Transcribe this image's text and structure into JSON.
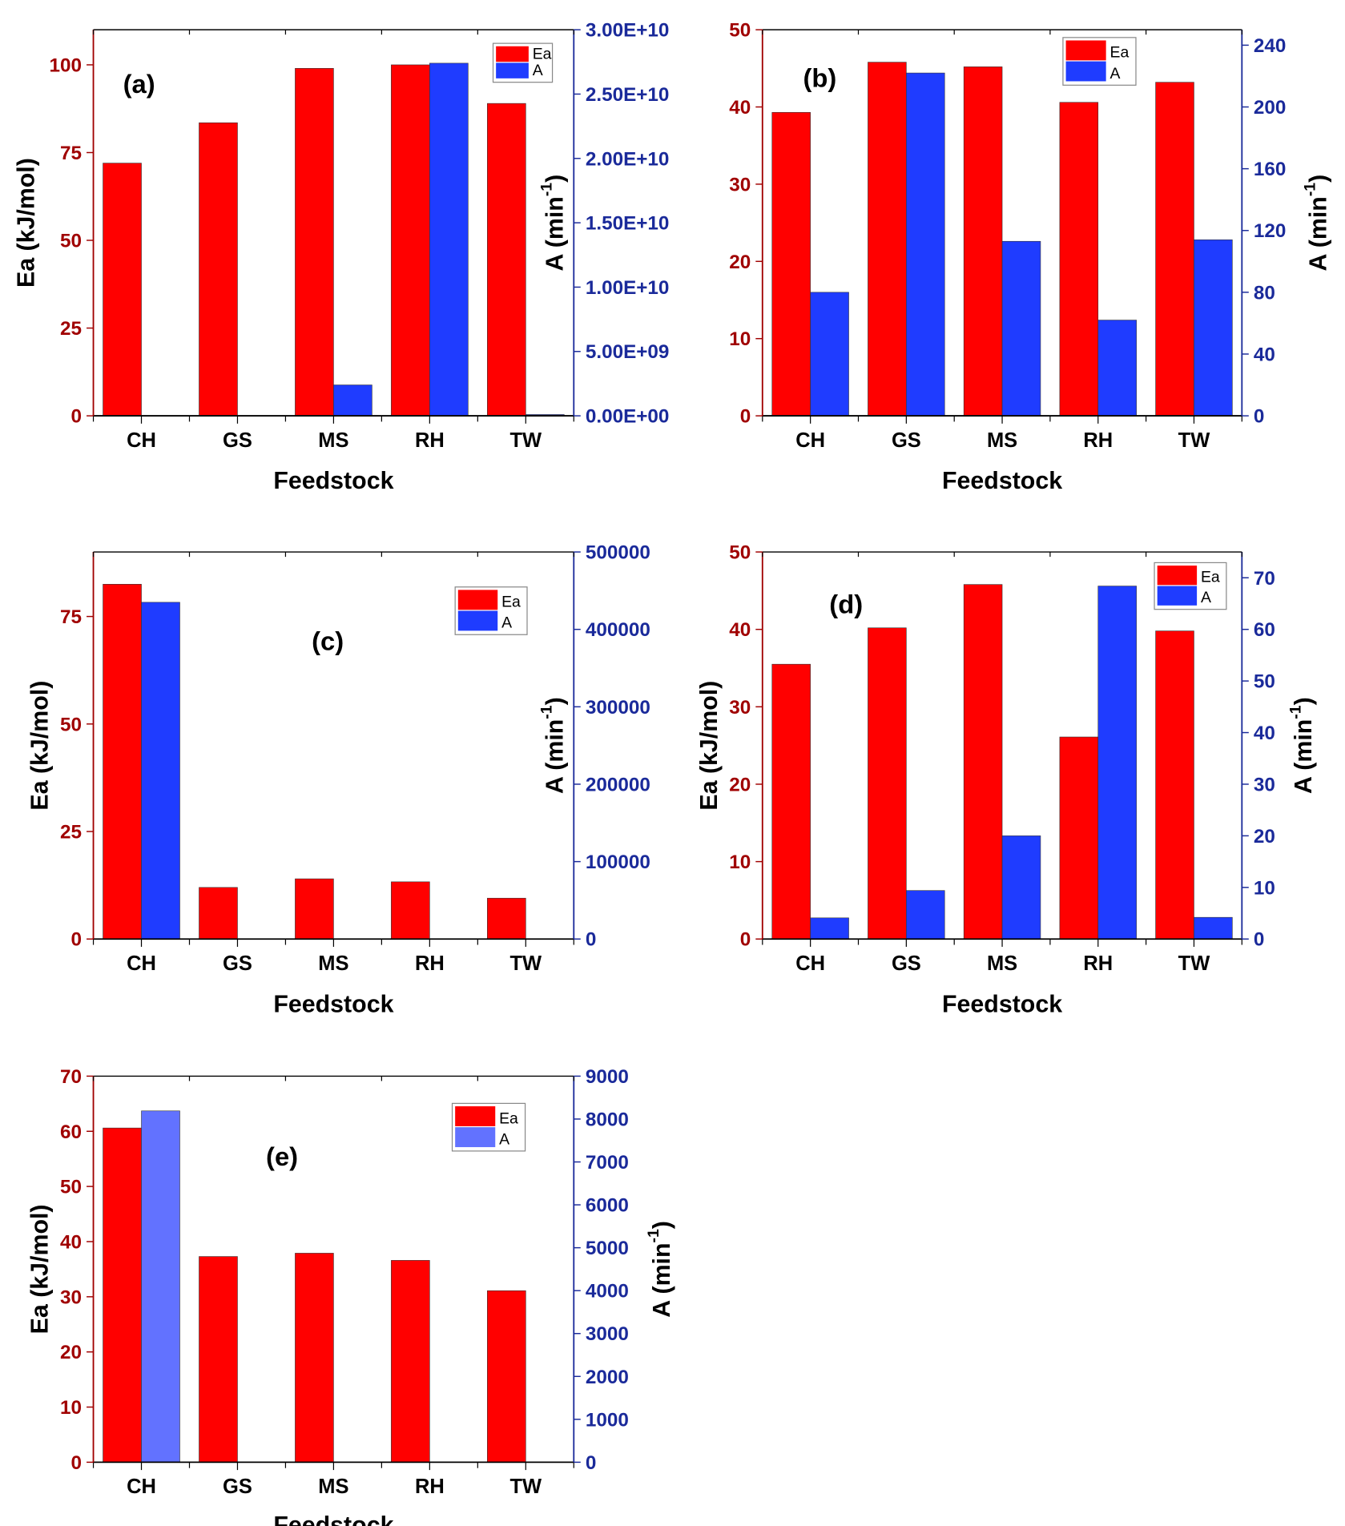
{
  "colors": {
    "ea": "#ff0000",
    "a": "#1f3cff",
    "a_light": "#6272ff",
    "left_axis": "#a00000",
    "right_axis": "#1a2a9a"
  },
  "chart_data": [
    {
      "type": "bar",
      "panel_label": "(a)",
      "categories": [
        "CH",
        "GS",
        "MS",
        "RH",
        "TW"
      ],
      "xlabel": "Feedstock",
      "ylabel": "Ea (kJ/mol)",
      "y2label": "A (min-1)",
      "ylim": [
        0,
        110
      ],
      "y2lim": [
        0,
        30000000000.0
      ],
      "yticks": [
        "0",
        "25",
        "50",
        "75",
        "100"
      ],
      "ytick_values": [
        0,
        25,
        50,
        75,
        100
      ],
      "y2ticks": [
        "0.00E+00",
        "5.00E+09",
        "1.00E+10",
        "1.50E+10",
        "2.00E+10",
        "2.50E+10",
        "3.00E+10"
      ],
      "y2tick_values": [
        0,
        5000000000.0,
        10000000000.0,
        15000000000.0,
        20000000000.0,
        25000000000.0,
        30000000000.0
      ],
      "legend": [
        "Ea",
        "A"
      ],
      "legend_position": "top-right",
      "series": [
        {
          "name": "Ea",
          "axis": "left",
          "values": [
            72,
            83.5,
            99,
            100,
            89
          ]
        },
        {
          "name": "A",
          "axis": "right",
          "values": [
            0,
            0,
            2400000000.0,
            27400000000.0,
            100000000.0
          ]
        }
      ]
    },
    {
      "type": "bar",
      "panel_label": "(b)",
      "categories": [
        "CH",
        "GS",
        "MS",
        "RH",
        "TW"
      ],
      "xlabel": "Feedstock",
      "ylabel": "",
      "y2label": "A (min-1)",
      "ylim": [
        0,
        50
      ],
      "y2lim": [
        0,
        250
      ],
      "yticks": [
        "0",
        "10",
        "20",
        "30",
        "40",
        "50"
      ],
      "ytick_values": [
        0,
        10,
        20,
        30,
        40,
        50
      ],
      "y2ticks": [
        "0",
        "40",
        "80",
        "120",
        "160",
        "200",
        "240"
      ],
      "y2tick_values": [
        0,
        40,
        80,
        120,
        160,
        200,
        240
      ],
      "legend": [
        "Ea",
        "A"
      ],
      "legend_position": "top-right",
      "series": [
        {
          "name": "Ea",
          "axis": "left",
          "values": [
            39.3,
            45.8,
            45.2,
            40.6,
            43.2
          ]
        },
        {
          "name": "A",
          "axis": "right",
          "values": [
            80,
            222,
            113,
            62,
            114
          ]
        }
      ]
    },
    {
      "type": "bar",
      "panel_label": "(c)",
      "categories": [
        "CH",
        "GS",
        "MS",
        "RH",
        "TW"
      ],
      "xlabel": "Feedstock",
      "ylabel": "Ea (kJ/mol)",
      "y2label": "A (min-1)",
      "ylim": [
        0,
        90
      ],
      "y2lim": [
        0,
        500000
      ],
      "yticks": [
        "0",
        "25",
        "50",
        "75"
      ],
      "ytick_values": [
        0,
        25,
        50,
        75
      ],
      "y2ticks": [
        "0",
        "100000",
        "200000",
        "300000",
        "400000",
        "500000"
      ],
      "y2tick_values": [
        0,
        100000,
        200000,
        300000,
        400000,
        500000
      ],
      "legend": [
        "Ea",
        "A"
      ],
      "legend_position": "top-right",
      "series": [
        {
          "name": "Ea",
          "axis": "left",
          "values": [
            82.5,
            12,
            14,
            13.3,
            9.5
          ]
        },
        {
          "name": "A",
          "axis": "right",
          "values": [
            435000,
            0,
            0,
            0,
            0
          ]
        }
      ]
    },
    {
      "type": "bar",
      "panel_label": "(d)",
      "categories": [
        "CH",
        "GS",
        "MS",
        "RH",
        "TW"
      ],
      "xlabel": "Feedstock",
      "ylabel": "Ea (kJ/mol)",
      "y2label": "A (min-1)",
      "ylim": [
        0,
        50
      ],
      "y2lim": [
        0,
        75
      ],
      "yticks": [
        "0",
        "10",
        "20",
        "30",
        "40",
        "50"
      ],
      "ytick_values": [
        0,
        10,
        20,
        30,
        40,
        50
      ],
      "y2ticks": [
        "0",
        "10",
        "20",
        "30",
        "40",
        "50",
        "60",
        "70"
      ],
      "y2tick_values": [
        0,
        10,
        20,
        30,
        40,
        50,
        60,
        70
      ],
      "legend": [
        "Ea",
        "A"
      ],
      "legend_position": "top-right",
      "series": [
        {
          "name": "Ea",
          "axis": "left",
          "values": [
            35.5,
            40.2,
            45.8,
            26.1,
            39.8
          ]
        },
        {
          "name": "A",
          "axis": "right",
          "values": [
            4.1,
            9.4,
            20,
            68.4,
            4.2
          ]
        }
      ]
    },
    {
      "type": "bar",
      "panel_label": "(e)",
      "categories": [
        "CH",
        "GS",
        "MS",
        "RH",
        "TW"
      ],
      "xlabel": "Feedstock",
      "ylabel": "Ea (kJ/mol)",
      "y2label": "A (min-1)",
      "ylim": [
        0,
        70
      ],
      "y2lim": [
        0,
        9000
      ],
      "yticks": [
        "0",
        "10",
        "20",
        "30",
        "40",
        "50",
        "60",
        "70"
      ],
      "ytick_values": [
        0,
        10,
        20,
        30,
        40,
        50,
        60,
        70
      ],
      "y2ticks": [
        "0",
        "1000",
        "2000",
        "3000",
        "4000",
        "5000",
        "6000",
        "7000",
        "8000",
        "9000"
      ],
      "y2tick_values": [
        0,
        1000,
        2000,
        3000,
        4000,
        5000,
        6000,
        7000,
        8000,
        9000
      ],
      "legend": [
        "Ea",
        "A"
      ],
      "legend_position": "top-right",
      "series": [
        {
          "name": "Ea",
          "axis": "left",
          "values": [
            60.6,
            37.3,
            37.9,
            36.6,
            31.1
          ]
        },
        {
          "name": "A",
          "axis": "right",
          "values": [
            8190,
            10,
            5,
            10,
            0
          ]
        }
      ]
    }
  ]
}
